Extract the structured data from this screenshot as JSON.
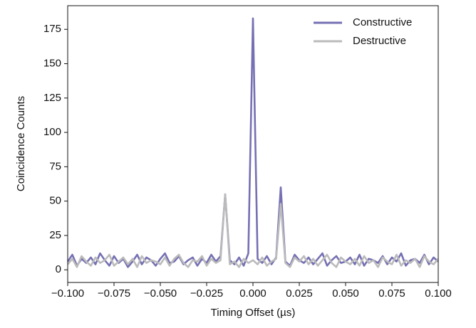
{
  "chart_data": {
    "type": "line",
    "x_label": "Timing Offset (µs)",
    "y_label": "Coincidence Counts",
    "x": [
      -0.1,
      -0.0975,
      -0.095,
      -0.0925,
      -0.09,
      -0.0875,
      -0.085,
      -0.0825,
      -0.08,
      -0.0775,
      -0.075,
      -0.0725,
      -0.07,
      -0.0675,
      -0.065,
      -0.0625,
      -0.06,
      -0.0575,
      -0.055,
      -0.0525,
      -0.05,
      -0.0475,
      -0.045,
      -0.0425,
      -0.04,
      -0.0375,
      -0.035,
      -0.0325,
      -0.03,
      -0.0275,
      -0.025,
      -0.0225,
      -0.02,
      -0.0175,
      -0.015,
      -0.0125,
      -0.01,
      -0.0075,
      -0.005,
      -0.0025,
      0,
      0.0025,
      0.005,
      0.0075,
      0.01,
      0.0125,
      0.015,
      0.0175,
      0.02,
      0.0225,
      0.025,
      0.0275,
      0.03,
      0.0325,
      0.035,
      0.0375,
      0.04,
      0.0425,
      0.045,
      0.0475,
      0.05,
      0.0525,
      0.055,
      0.0575,
      0.06,
      0.0625,
      0.065,
      0.0675,
      0.07,
      0.0725,
      0.075,
      0.0775,
      0.08,
      0.0825,
      0.085,
      0.0875,
      0.09,
      0.0925,
      0.095,
      0.0975,
      0.1
    ],
    "series": [
      {
        "name": "Constructive",
        "color": "#7570b3",
        "values": [
          6,
          11,
          3,
          8,
          5,
          9,
          4,
          12,
          7,
          3,
          10,
          5,
          8,
          2,
          6,
          11,
          4,
          9,
          7,
          3,
          8,
          12,
          5,
          6,
          10,
          4,
          7,
          9,
          3,
          8,
          5,
          11,
          6,
          10,
          55,
          7,
          4,
          9,
          3,
          12,
          183,
          8,
          5,
          10,
          4,
          9,
          60,
          6,
          3,
          11,
          7,
          5,
          9,
          4,
          8,
          12,
          3,
          7,
          10,
          5,
          6,
          9,
          4,
          11,
          3,
          8,
          7,
          5,
          10,
          4,
          9,
          6,
          12,
          3,
          7,
          8,
          5,
          11,
          4,
          9,
          6
        ]
      },
      {
        "name": "Destructive",
        "color": "#bbbbbb",
        "values": [
          4,
          8,
          2,
          10,
          6,
          3,
          9,
          5,
          7,
          11,
          3,
          6,
          9,
          4,
          8,
          2,
          10,
          5,
          7,
          6,
          4,
          9,
          3,
          8,
          11,
          5,
          2,
          7,
          6,
          10,
          3,
          8,
          5,
          7,
          55,
          4,
          6,
          2,
          8,
          5,
          7,
          4,
          9,
          3,
          6,
          8,
          48,
          5,
          2,
          9,
          6,
          10,
          4,
          8,
          3,
          7,
          11,
          5,
          2,
          9,
          6,
          4,
          8,
          3,
          10,
          5,
          7,
          2,
          9,
          6,
          4,
          11,
          3,
          7,
          5,
          8,
          2,
          10,
          6,
          4,
          8
        ]
      }
    ],
    "xlim": [
      -0.1,
      0.1
    ],
    "xticks": [
      {
        "value": -0.1,
        "label": "−0.100"
      },
      {
        "value": -0.075,
        "label": "−0.075"
      },
      {
        "value": -0.05,
        "label": "−0.050"
      },
      {
        "value": -0.025,
        "label": "−0.025"
      },
      {
        "value": 0,
        "label": "0.000"
      },
      {
        "value": 0.025,
        "label": "0.025"
      },
      {
        "value": 0.05,
        "label": "0.050"
      },
      {
        "value": 0.075,
        "label": "0.075"
      },
      {
        "value": 0.1,
        "label": "0.100"
      }
    ],
    "ylim": [
      -9.2,
      192.2
    ],
    "yticks": [
      0,
      25,
      50,
      75,
      100,
      125,
      150,
      175
    ],
    "legend": "upper right"
  }
}
